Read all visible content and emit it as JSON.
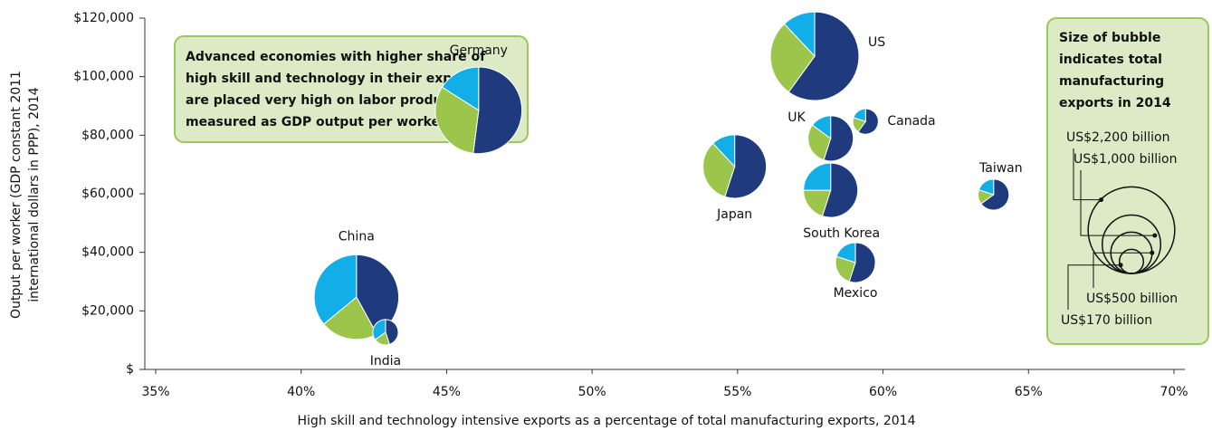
{
  "chart_data": {
    "type": "bubble-pie",
    "x_label": "High skill and technology intensive exports as a percentage of total manufacturing exports, 2014",
    "y_label": [
      "Output per worker (GDP constant 2011",
      "international dollars in PPP), 2014"
    ],
    "xlim": [
      35,
      70
    ],
    "xticks": [
      {
        "value": 35,
        "label": "35%"
      },
      {
        "value": 40,
        "label": "40%"
      },
      {
        "value": 45,
        "label": "45%"
      },
      {
        "value": 50,
        "label": "50%"
      },
      {
        "value": 55,
        "label": "55%"
      },
      {
        "value": 60,
        "label": "60%"
      },
      {
        "value": 65,
        "label": "65%"
      },
      {
        "value": 70,
        "label": "70%"
      }
    ],
    "ylim": [
      0,
      120000
    ],
    "yticks": [
      {
        "value": 0,
        "label": "$"
      },
      {
        "value": 20000,
        "label": "$20,000"
      },
      {
        "value": 40000,
        "label": "$40,000"
      },
      {
        "value": 60000,
        "label": "$60,000"
      },
      {
        "value": 80000,
        "label": "$80,000"
      },
      {
        "value": 100000,
        "label": "$100,000"
      },
      {
        "value": 120000,
        "label": "$120,000"
      }
    ],
    "slice_colors": [
      "#1f3a7d",
      "#9bc54b",
      "#12aee8"
    ],
    "points": [
      {
        "name": "China",
        "x": 41.9,
        "y": 24700,
        "size": 2100,
        "slices": [
          42,
          22,
          36
        ]
      },
      {
        "name": "India",
        "x": 42.9,
        "y": 12700,
        "size": 190,
        "slices": [
          45,
          20,
          35
        ]
      },
      {
        "name": "Germany",
        "x": 46.1,
        "y": 88500,
        "size": 2200,
        "slices": [
          52,
          32,
          16
        ]
      },
      {
        "name": "Japan",
        "x": 54.9,
        "y": 69300,
        "size": 1180,
        "slices": [
          55,
          33,
          12
        ]
      },
      {
        "name": "US",
        "x": 57.65,
        "y": 107000,
        "size": 2300,
        "slices": [
          60,
          28,
          12
        ]
      },
      {
        "name": "UK",
        "x": 58.2,
        "y": 78900,
        "size": 600,
        "slices": [
          55,
          30,
          15
        ]
      },
      {
        "name": "Canada",
        "x": 59.4,
        "y": 84700,
        "size": 190,
        "slices": [
          60,
          20,
          20
        ]
      },
      {
        "name": "South Korea",
        "x": 58.2,
        "y": 61200,
        "size": 865,
        "slices": [
          55,
          20,
          25
        ]
      },
      {
        "name": "Mexico",
        "x": 59.05,
        "y": 36500,
        "size": 465,
        "slices": [
          55,
          25,
          20
        ]
      },
      {
        "name": "Taiwan",
        "x": 63.8,
        "y": 59700,
        "size": 280,
        "slices": [
          65,
          15,
          20
        ]
      }
    ],
    "annotation": [
      "Advanced economies with higher share of",
      "high skill and technology in their exports",
      "are placed very high on labor productivity",
      "measured as GDP output per worker"
    ],
    "size_legend": {
      "title": [
        "Size of bubble",
        "indicates total",
        "manufacturing",
        "exports in 2014"
      ],
      "sizes": [
        2200,
        1000,
        500,
        170
      ],
      "labels": [
        "US$2,200 billion",
        "US$1,000 billion",
        "US$500 billion",
        "US$170 billion"
      ]
    }
  }
}
